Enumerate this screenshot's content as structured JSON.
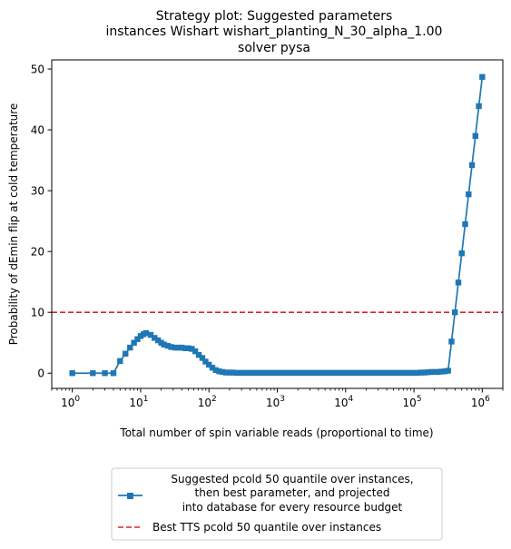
{
  "chart_data": {
    "type": "line",
    "title": [
      "Strategy plot: Suggested parameters",
      "instances Wishart wishart_planting_N_30_alpha_1.00",
      "solver pysa"
    ],
    "xlabel": "Total number of spin variable reads (proportional to time)",
    "ylabel": "Probability of dEmin flip at cold temperature",
    "xscale": "log",
    "xlim": [
      0.5,
      2000000
    ],
    "ylim": [
      -2.5,
      51.5
    ],
    "x_ticks": [
      {
        "base": "10",
        "exp": "0",
        "value": 1
      },
      {
        "base": "10",
        "exp": "1",
        "value": 10
      },
      {
        "base": "10",
        "exp": "2",
        "value": 100
      },
      {
        "base": "10",
        "exp": "3",
        "value": 1000
      },
      {
        "base": "10",
        "exp": "4",
        "value": 10000
      },
      {
        "base": "10",
        "exp": "5",
        "value": 100000
      },
      {
        "base": "10",
        "exp": "6",
        "value": 1000000
      }
    ],
    "y_ticks": [
      "0",
      "10",
      "20",
      "30",
      "40",
      "50"
    ],
    "grid": false,
    "legend_position": "below the plot",
    "hline": {
      "y": 10,
      "color": "#d62728"
    },
    "series": [
      {
        "name": [
          "Suggested pcold 50 quantile over instances,",
          "then best parameter, and projected",
          "into database for every resource budget"
        ],
        "color": "#1f77b4",
        "marker": "square",
        "x": [
          1,
          2,
          3,
          4,
          5,
          6,
          7,
          8,
          9,
          10,
          11,
          12,
          14,
          16,
          18,
          20,
          22,
          25,
          28,
          32,
          36,
          40,
          45,
          50,
          56,
          63,
          71,
          80,
          89,
          100,
          112,
          126,
          141,
          158,
          178,
          200,
          224,
          251,
          282,
          316,
          355,
          398,
          447,
          501,
          562,
          631,
          708,
          794,
          891,
          1000,
          1122,
          1259,
          1413,
          1585,
          1778,
          1995,
          2239,
          2512,
          2818,
          3162,
          3548,
          3981,
          4467,
          5012,
          5623,
          6310,
          7079,
          7943,
          8913,
          10000,
          11220,
          12589,
          14125,
          15849,
          17783,
          19953,
          22387,
          25119,
          28184,
          31623,
          35481,
          39811,
          44668,
          50119,
          56234,
          63096,
          70795,
          79433,
          89125,
          100000,
          112202,
          125893,
          141254,
          158489,
          177828,
          199526,
          223872,
          251189,
          281838,
          316228,
          354813,
          398107,
          446684,
          501187,
          562341,
          630957,
          707946,
          794328,
          891251,
          1000000
        ],
        "y": [
          0,
          0,
          0,
          0,
          2.0,
          3.2,
          4.2,
          5.0,
          5.6,
          6.1,
          6.4,
          6.6,
          6.3,
          5.8,
          5.4,
          5.0,
          4.7,
          4.5,
          4.3,
          4.2,
          4.2,
          4.2,
          4.1,
          4.1,
          4.0,
          3.6,
          3.0,
          2.5,
          1.9,
          1.4,
          0.9,
          0.5,
          0.3,
          0.2,
          0.1,
          0.1,
          0.1,
          0.05,
          0.05,
          0.05,
          0.05,
          0.05,
          0.05,
          0.05,
          0.05,
          0.05,
          0.05,
          0.05,
          0.05,
          0.05,
          0.05,
          0.05,
          0.05,
          0.05,
          0.05,
          0.05,
          0.05,
          0.05,
          0.05,
          0.05,
          0.05,
          0.05,
          0.05,
          0.05,
          0.05,
          0.05,
          0.05,
          0.05,
          0.05,
          0.05,
          0.05,
          0.05,
          0.05,
          0.05,
          0.05,
          0.05,
          0.05,
          0.05,
          0.05,
          0.05,
          0.05,
          0.05,
          0.05,
          0.05,
          0.05,
          0.05,
          0.05,
          0.05,
          0.05,
          0.05,
          0.05,
          0.1,
          0.1,
          0.15,
          0.2,
          0.2,
          0.2,
          0.25,
          0.3,
          0.4,
          5.2,
          10.0,
          14.9,
          19.7,
          24.5,
          29.4,
          34.2,
          39.0,
          43.9,
          48.7
        ]
      },
      {
        "name": "Best TTS pcold 50 quantile over instances",
        "color": "#d62728",
        "style": "dashed"
      }
    ]
  }
}
